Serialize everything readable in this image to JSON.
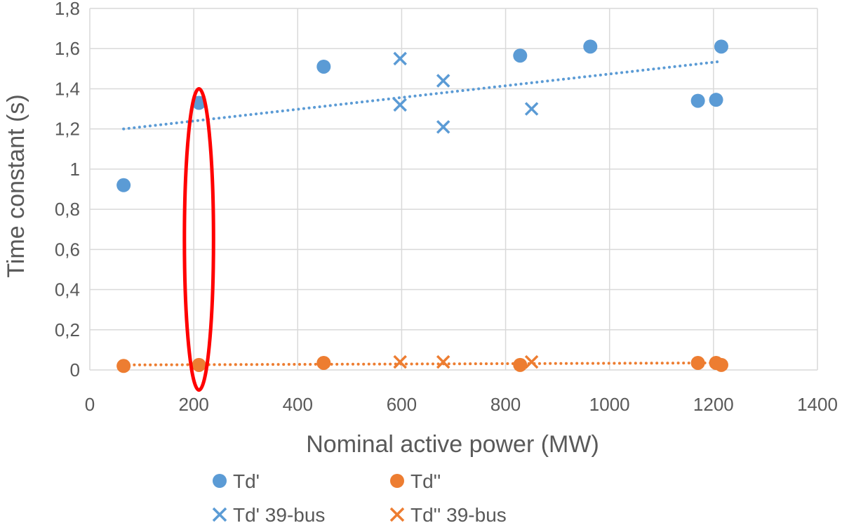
{
  "chart_data": {
    "type": "scatter",
    "xlabel": "Nominal active power (MW)",
    "ylabel": "Time constant  (s)",
    "xlim": [
      0,
      1400
    ],
    "ylim": [
      0,
      1.8
    ],
    "x_ticks": [
      0,
      200,
      400,
      600,
      800,
      1000,
      1200,
      1400
    ],
    "y_ticks": [
      0,
      0.2,
      0.4,
      0.6,
      0.8,
      1.0,
      1.2,
      1.4,
      1.6,
      1.8
    ],
    "y_tick_labels": [
      "0",
      "0,2",
      "0,4",
      "0,6",
      "0,8",
      "1",
      "1,2",
      "1,4",
      "1,6",
      "1,8"
    ],
    "grid": true,
    "legend_position": "bottom",
    "series": [
      {
        "name": "Td'",
        "marker": "circle",
        "color": "#5b9bd5",
        "points": [
          [
            65,
            0.92
          ],
          [
            210,
            1.33
          ],
          [
            450,
            1.51
          ],
          [
            828,
            1.565
          ],
          [
            963,
            1.61
          ],
          [
            1170,
            1.34
          ],
          [
            1205,
            1.345
          ],
          [
            1215,
            1.61
          ]
        ]
      },
      {
        "name": "Td''",
        "marker": "circle",
        "color": "#ed7d31",
        "points": [
          [
            65,
            0.02
          ],
          [
            210,
            0.025
          ],
          [
            450,
            0.035
          ],
          [
            828,
            0.025
          ],
          [
            1170,
            0.035
          ],
          [
            1205,
            0.035
          ],
          [
            1215,
            0.025
          ]
        ]
      },
      {
        "name": "Td' 39-bus",
        "marker": "x",
        "color": "#5b9bd5",
        "points": [
          [
            597,
            1.55
          ],
          [
            597,
            1.32
          ],
          [
            680,
            1.44
          ],
          [
            680,
            1.21
          ],
          [
            850,
            1.3
          ]
        ]
      },
      {
        "name": "Td'' 39-bus",
        "marker": "x",
        "color": "#ed7d31",
        "points": [
          [
            597,
            0.04
          ],
          [
            680,
            0.04
          ],
          [
            850,
            0.04
          ]
        ]
      }
    ],
    "trendlines": [
      {
        "color": "#5b9bd5",
        "from": [
          65,
          1.2
        ],
        "to": [
          1210,
          1.535
        ]
      },
      {
        "color": "#ed7d31",
        "from": [
          65,
          0.025
        ],
        "to": [
          1210,
          0.035
        ]
      }
    ],
    "annotation": {
      "shape": "ellipse",
      "color": "#ff0000",
      "center": [
        210,
        0.65
      ],
      "x_radius": 28,
      "y_radius": 0.75
    }
  }
}
